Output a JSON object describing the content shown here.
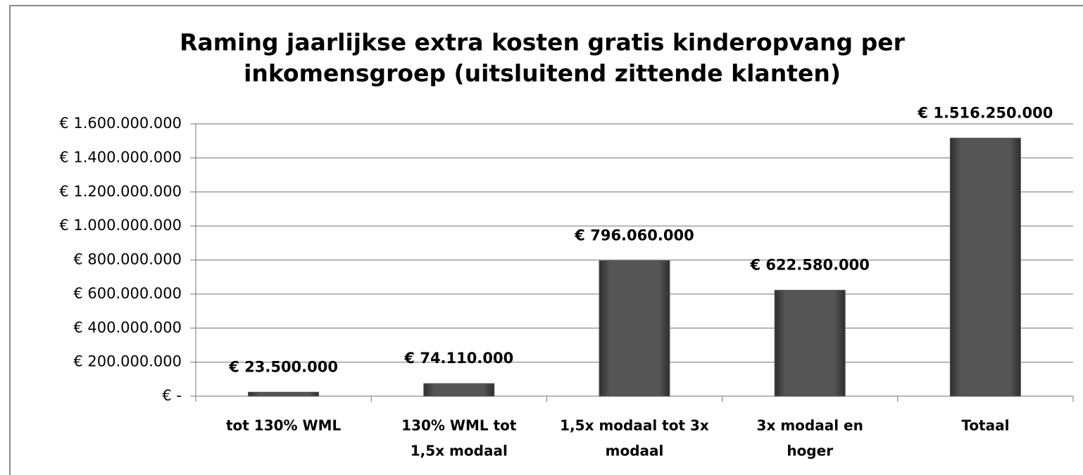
{
  "chart_data": {
    "type": "bar",
    "title": [
      "Raming jaarlijkse extra kosten gratis kinderopvang per",
      "inkomensgroep (uitsluitend zittende klanten)"
    ],
    "categories": [
      [
        "tot 130% WML"
      ],
      [
        "130% WML tot",
        "1,5x modaal"
      ],
      [
        "1,5x modaal tot 3x",
        "modaal"
      ],
      [
        "3x modaal en",
        "hoger"
      ],
      [
        "Totaal"
      ]
    ],
    "values": [
      23500000,
      74110000,
      796060000,
      622580000,
      1516250000
    ],
    "value_labels": [
      "€ 23.500.000",
      "€ 74.110.000",
      "€ 796.060.000",
      "€ 622.580.000",
      "€ 1.516.250.000"
    ],
    "color": "#555555",
    "ylim": [
      0,
      1600000000
    ],
    "yticks": [
      {
        "value": 0,
        "label": "€ -"
      },
      {
        "value": 200000000,
        "label": "€ 200.000.000"
      },
      {
        "value": 400000000,
        "label": "€ 400.000.000"
      },
      {
        "value": 600000000,
        "label": "€ 600.000.000"
      },
      {
        "value": 800000000,
        "label": "€ 800.000.000"
      },
      {
        "value": 1000000000,
        "label": "€ 1.000.000.000"
      },
      {
        "value": 1200000000,
        "label": "€ 1.200.000.000"
      },
      {
        "value": 1400000000,
        "label": "€ 1.400.000.000"
      },
      {
        "value": 1600000000,
        "label": "€ 1.600.000.000"
      }
    ],
    "grid": true
  }
}
